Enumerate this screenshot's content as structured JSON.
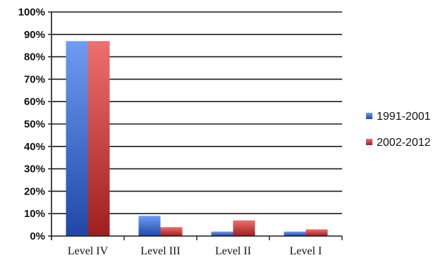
{
  "chart_data": {
    "type": "bar",
    "categories": [
      "Level IV",
      "Level III",
      "Level II",
      "Level I"
    ],
    "series": [
      {
        "name": "1991-2001",
        "values": [
          87,
          9,
          2,
          2
        ],
        "color": "#3f6fd8",
        "color_light": "#6f9cf2",
        "color_dark": "#1f47a8"
      },
      {
        "name": "2002-2012",
        "values": [
          87,
          4,
          7,
          3
        ],
        "color": "#d33a3a",
        "color_light": "#ef6f6f",
        "color_dark": "#9f1f1f"
      }
    ],
    "title": "",
    "xlabel": "",
    "ylabel": "",
    "ylim": [
      0,
      100
    ],
    "yticks": [
      0,
      10,
      20,
      30,
      40,
      50,
      60,
      70,
      80,
      90,
      100
    ],
    "ytick_labels": [
      "0%",
      "10%",
      "20%",
      "30%",
      "40%",
      "50%",
      "60%",
      "70%",
      "80%",
      "90%",
      "100%"
    ],
    "grid": true,
    "legend_position": "right"
  }
}
